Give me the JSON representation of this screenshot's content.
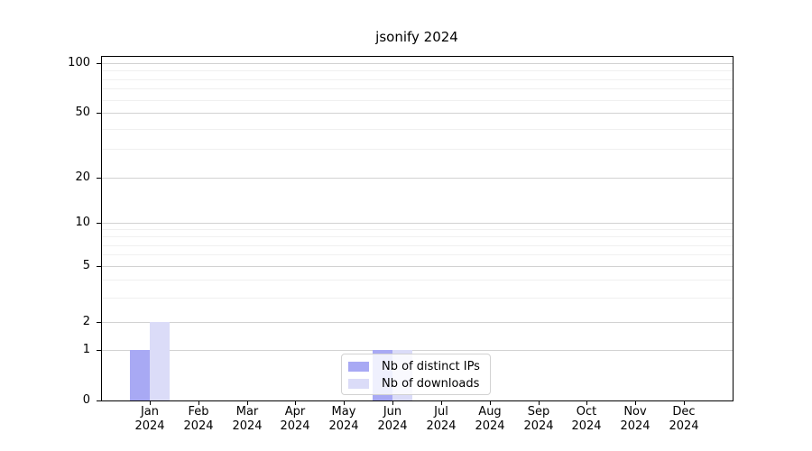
{
  "figure": {
    "title": "jsonify 2024"
  },
  "chart_data": {
    "type": "bar",
    "title": "jsonify 2024",
    "categories": [
      "Jan 2024",
      "Feb 2024",
      "Mar 2024",
      "Apr 2024",
      "May 2024",
      "Jun 2024",
      "Jul 2024",
      "Aug 2024",
      "Sep 2024",
      "Oct 2024",
      "Nov 2024",
      "Dec 2024"
    ],
    "series": [
      {
        "name": "Nb of distinct IPs",
        "color": "#a8a9f4",
        "values": [
          1,
          0,
          0,
          0,
          0,
          1,
          0,
          0,
          0,
          0,
          0,
          0
        ]
      },
      {
        "name": "Nb of downloads",
        "color": "#dbdcf8",
        "values": [
          2,
          0,
          0,
          0,
          0,
          1,
          0,
          0,
          0,
          0,
          0,
          0
        ]
      }
    ],
    "xlabel": "",
    "ylabel": "",
    "yscale": "symlog",
    "ylim": [
      0,
      120
    ],
    "y_major_ticks": [
      0,
      1,
      2,
      5,
      10,
      20,
      50,
      100
    ],
    "y_minor_ticks": [
      3,
      4,
      6,
      7,
      8,
      9,
      30,
      40,
      60,
      70,
      80,
      90
    ],
    "grid": true,
    "legend_position": "lower center"
  },
  "legend": {
    "items": [
      {
        "label": "Nb of distinct IPs"
      },
      {
        "label": "Nb of downloads"
      }
    ]
  },
  "colors": {
    "bar_distinct_ips": "#a8a9f4",
    "bar_downloads": "#dbdcf8",
    "grid_major": "#d2d2d2",
    "grid_minor": "#f0f0f0",
    "spine": "#000000",
    "legend_border": "#d2d2d2",
    "background": "#ffffff",
    "text": "#000000"
  }
}
